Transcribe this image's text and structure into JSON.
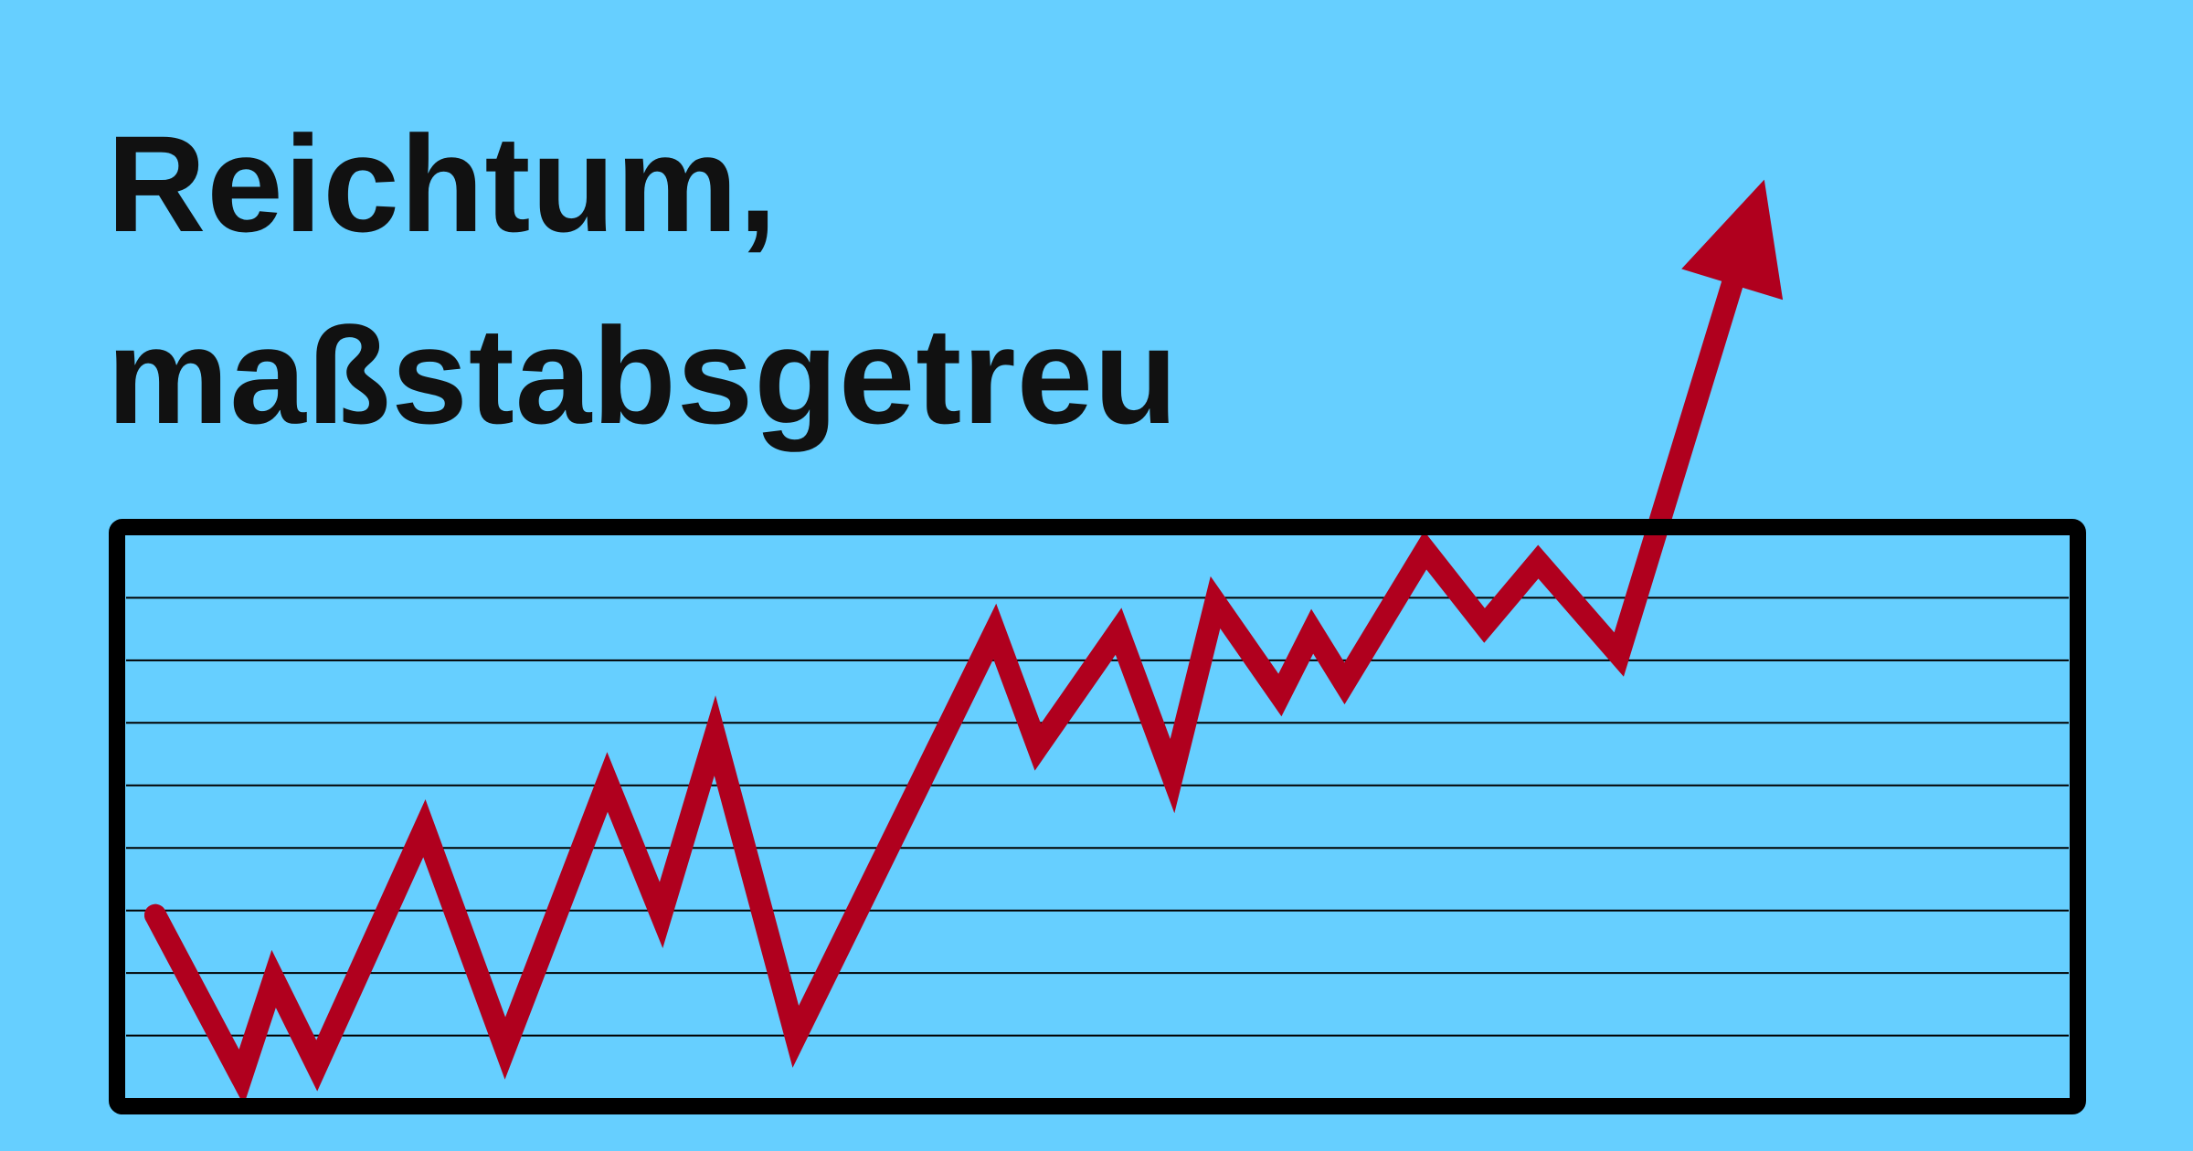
{
  "title": {
    "line1": "Reichtum,",
    "line2": "maßstabsgetreu"
  },
  "colors": {
    "background": "#66cfff",
    "frame": "#000000",
    "gridline": "#000000",
    "series": "#b0001e",
    "text": "#111111"
  },
  "chart_data": {
    "type": "line",
    "grid": true,
    "gridline_count": 8,
    "legend": "none",
    "title": "Reichtum, maßstabsgetreu",
    "xlabel": "",
    "ylabel": "",
    "xlim": [
      0,
      36
    ],
    "ylim": [
      0,
      10
    ],
    "arrow_end": true,
    "series": [
      {
        "x": [
          0,
          1.6,
          2.2,
          3.0,
          5.0,
          6.5,
          8.4,
          9.4,
          10.4,
          11.9,
          15.6,
          16.4,
          17.9,
          18.9,
          19.7,
          20.9,
          21.5,
          22.1,
          23.6,
          24.7,
          25.7,
          27.2
        ],
        "y": [
          3.3,
          0.5,
          2.2,
          0.7,
          4.8,
          1.0,
          5.6,
          3.3,
          6.4,
          1.2,
          8.2,
          6.2,
          8.2,
          5.7,
          8.7,
          7.1,
          8.2,
          7.3,
          9.6,
          8.3,
          9.4,
          7.8
        ],
        "arrow_tip": {
          "x": 29.9,
          "y": 16.0
        }
      }
    ]
  }
}
